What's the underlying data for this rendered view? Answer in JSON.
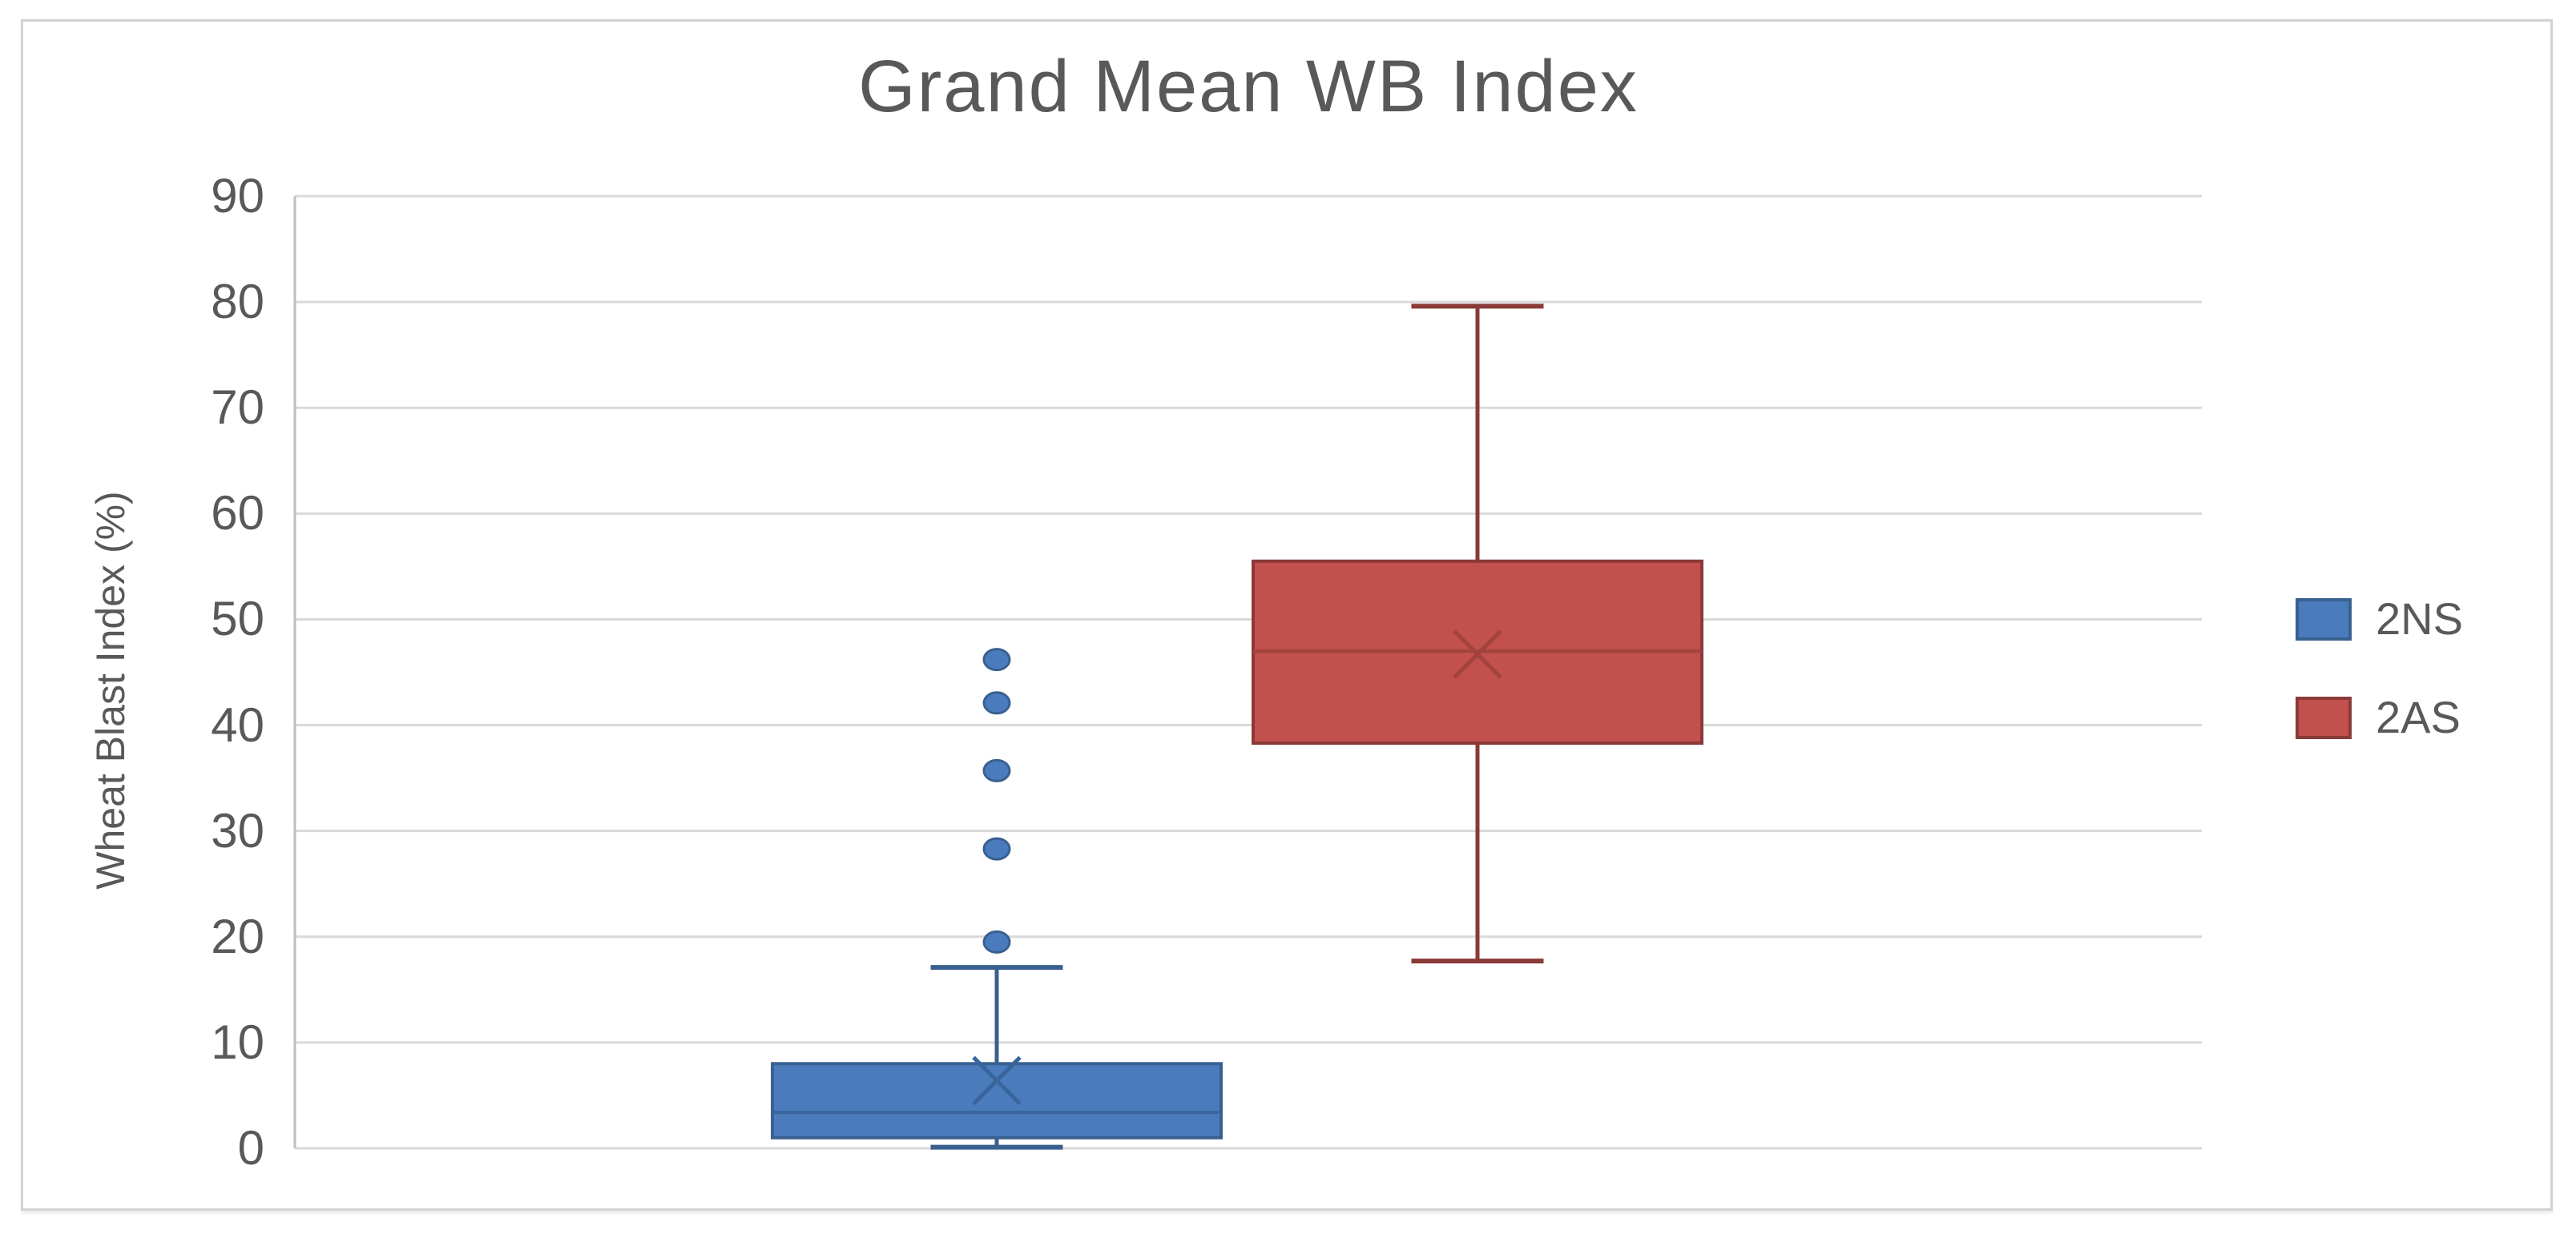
{
  "figure": {
    "background": "#ffffff",
    "border_color": "#d2d2d2"
  },
  "chart_data": {
    "type": "boxplot",
    "title": "Grand Mean WB Index",
    "ylabel": "Wheat Blast Index (%)",
    "xlabel": "",
    "ylim": [
      0,
      90
    ],
    "ytick_interval": 10,
    "yticks": [
      90,
      80,
      70,
      60,
      50,
      40,
      30,
      20,
      10,
      0
    ],
    "grid": "horizontal-only",
    "legend_position": "right-middle",
    "gridline_color": "#d9d9d9",
    "axis_line_color": "#bfbfbf",
    "text_color": "#595959",
    "series": [
      {
        "name": "2NS",
        "fill_color": "#4a7cbd",
        "edge_color": "#39608f",
        "median_color": "#3a649c",
        "mean_color": "#3a649c",
        "whisker_low": 0.1,
        "q1": 1.0,
        "median": 3.4,
        "mean": 6.4,
        "q3": 8.0,
        "whisker_high": 17.1,
        "outliers": [
          19.5,
          28.3,
          35.7,
          42.1,
          46.2
        ]
      },
      {
        "name": "2AS",
        "fill_color": "#c2504d",
        "edge_color": "#8a3a37",
        "median_color": "#a2433f",
        "mean_color": "#a2433f",
        "whisker_low": 17.7,
        "q1": 38.3,
        "median": 47.0,
        "mean": 46.7,
        "q3": 55.5,
        "whisker_high": 79.6,
        "outliers": []
      }
    ]
  }
}
